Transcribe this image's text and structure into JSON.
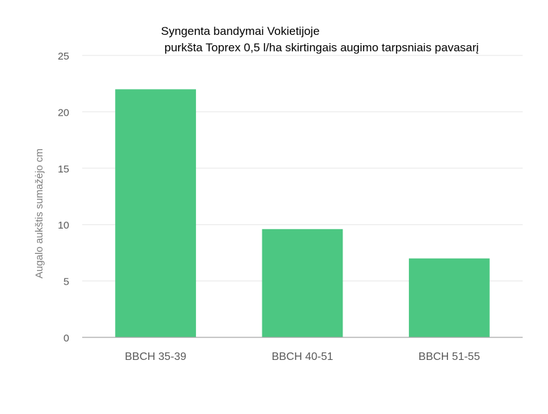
{
  "chart_data": {
    "type": "bar",
    "title": "Syngenta bandymai Vokietijoje",
    "subtitle": " purkšta Toprex 0,5 l/ha skirtingais augimo tarpsniais pavasarį",
    "xlabel": "",
    "ylabel": "Augalo aukštis sumažėjo cm",
    "categories": [
      "BBCH  35-39",
      "BBCH 40-51",
      "BBCH 51-55"
    ],
    "values": [
      22,
      9.6,
      7
    ],
    "ylim": [
      0,
      25
    ],
    "yticks": [
      0,
      5,
      10,
      15,
      20,
      25
    ],
    "grid": true,
    "legend": "none",
    "colors": {
      "bar": "#4cc782",
      "grid": "#e6e6e6",
      "axis": "#a6a6a6",
      "tick_text": "#595959",
      "ylabel_text": "#7f7f7f"
    }
  }
}
